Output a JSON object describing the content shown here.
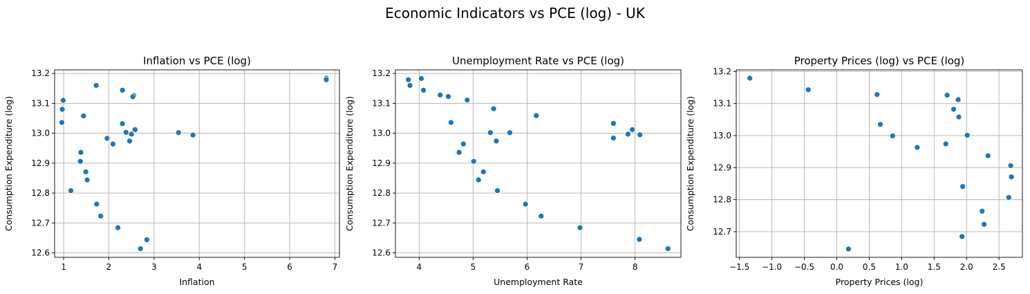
{
  "figure": {
    "title": "Economic Indicators vs PCE (log) - UK",
    "marker_color": "#1f77b4",
    "grid": true
  },
  "chart_data": [
    {
      "type": "scatter",
      "title": "Inflation vs PCE (log)",
      "xlabel": "Inflation",
      "ylabel": "Consumption Expenditure (log)",
      "xlim": [
        0.8,
        7.1
      ],
      "ylim": [
        12.585,
        13.212
      ],
      "xticks": [
        1,
        2,
        3,
        4,
        5,
        6,
        7
      ],
      "xtick_labels": [
        "1",
        "2",
        "3",
        "4",
        "5",
        "6",
        "7"
      ],
      "yticks": [
        12.6,
        12.7,
        12.8,
        12.9,
        13.0,
        13.1,
        13.2
      ],
      "ytick_labels": [
        "12.6",
        "12.7",
        "12.8",
        "12.9",
        "13.0",
        "13.1",
        "13.2"
      ],
      "points": [
        [
          6.81,
          13.184
        ],
        [
          6.81,
          13.179
        ],
        [
          1.72,
          13.16
        ],
        [
          2.3,
          13.144
        ],
        [
          2.55,
          13.126
        ],
        [
          2.53,
          13.122
        ],
        [
          0.99,
          13.11
        ],
        [
          0.97,
          13.08
        ],
        [
          1.44,
          13.058
        ],
        [
          0.96,
          13.036
        ],
        [
          2.3,
          13.032
        ],
        [
          2.58,
          13.012
        ],
        [
          2.38,
          13.003
        ],
        [
          3.54,
          13.002
        ],
        [
          2.5,
          12.997
        ],
        [
          3.86,
          12.994
        ],
        [
          1.96,
          12.983
        ],
        [
          2.46,
          12.974
        ],
        [
          2.09,
          12.964
        ],
        [
          1.38,
          12.936
        ],
        [
          1.37,
          12.906
        ],
        [
          1.49,
          12.871
        ],
        [
          1.52,
          12.844
        ],
        [
          1.16,
          12.808
        ],
        [
          1.73,
          12.763
        ],
        [
          1.82,
          12.723
        ],
        [
          2.2,
          12.684
        ],
        [
          2.84,
          12.644
        ],
        [
          2.7,
          12.614
        ]
      ]
    },
    {
      "type": "scatter",
      "title": "Unemployment Rate vs PCE (log)",
      "xlabel": "Unemployment Rate",
      "ylabel": "Consumption Expenditure (log)",
      "xlim": [
        3.56,
        8.85
      ],
      "ylim": [
        12.585,
        13.212
      ],
      "xticks": [
        4,
        5,
        6,
        7,
        8
      ],
      "xtick_labels": [
        "4",
        "5",
        "6",
        "7",
        "8"
      ],
      "yticks": [
        12.6,
        12.7,
        12.8,
        12.9,
        13.0,
        13.1,
        13.2
      ],
      "ytick_labels": [
        "12.6",
        "12.7",
        "12.8",
        "12.9",
        "13.0",
        "13.1",
        "13.2"
      ],
      "points": [
        [
          3.8,
          13.179
        ],
        [
          4.04,
          13.183
        ],
        [
          3.83,
          13.16
        ],
        [
          4.08,
          13.144
        ],
        [
          4.39,
          13.128
        ],
        [
          4.54,
          13.123
        ],
        [
          4.89,
          13.111
        ],
        [
          5.38,
          13.082
        ],
        [
          6.17,
          13.059
        ],
        [
          4.59,
          13.036
        ],
        [
          7.6,
          13.033
        ],
        [
          7.95,
          13.012
        ],
        [
          5.32,
          13.002
        ],
        [
          5.68,
          13.002
        ],
        [
          7.87,
          12.997
        ],
        [
          8.09,
          12.995
        ],
        [
          7.6,
          12.984
        ],
        [
          5.43,
          12.974
        ],
        [
          4.82,
          12.964
        ],
        [
          4.74,
          12.936
        ],
        [
          5.01,
          12.906
        ],
        [
          5.19,
          12.871
        ],
        [
          5.1,
          12.844
        ],
        [
          5.45,
          12.808
        ],
        [
          5.97,
          12.763
        ],
        [
          6.26,
          12.723
        ],
        [
          6.98,
          12.684
        ],
        [
          8.08,
          12.645
        ],
        [
          8.61,
          12.614
        ]
      ]
    },
    {
      "type": "scatter",
      "title": "Property Prices (log) vs PCE (log)",
      "xlabel": "Property Prices (log)",
      "ylabel": "Consumption Expenditure (log)",
      "xlim": [
        -1.55,
        2.86
      ],
      "ylim": [
        12.62,
        13.205
      ],
      "xticks": [
        -1.5,
        -1.0,
        -0.5,
        0.0,
        0.5,
        1.0,
        1.5,
        2.0,
        2.5
      ],
      "xtick_labels": [
        "−1.5",
        "−1.0",
        "−0.5",
        "0.0",
        "0.5",
        "1.0",
        "1.5",
        "2.0",
        "2.5"
      ],
      "yticks": [
        12.7,
        12.8,
        12.9,
        13.0,
        13.1,
        13.2
      ],
      "ytick_labels": [
        "12.7",
        "12.8",
        "12.9",
        "13.0",
        "13.1",
        "13.2"
      ],
      "points": [
        [
          -1.34,
          13.179
        ],
        [
          -0.44,
          13.143
        ],
        [
          0.62,
          13.128
        ],
        [
          1.7,
          13.126
        ],
        [
          1.87,
          13.112
        ],
        [
          1.8,
          13.082
        ],
        [
          1.88,
          13.058
        ],
        [
          0.67,
          13.035
        ],
        [
          2.01,
          13.001
        ],
        [
          0.86,
          12.999
        ],
        [
          1.68,
          12.974
        ],
        [
          1.24,
          12.963
        ],
        [
          2.33,
          12.937
        ],
        [
          2.68,
          12.906
        ],
        [
          2.69,
          12.871
        ],
        [
          1.94,
          12.841
        ],
        [
          2.65,
          12.807
        ],
        [
          2.24,
          12.764
        ],
        [
          2.27,
          12.723
        ],
        [
          1.93,
          12.685
        ],
        [
          0.18,
          12.646
        ]
      ]
    }
  ]
}
